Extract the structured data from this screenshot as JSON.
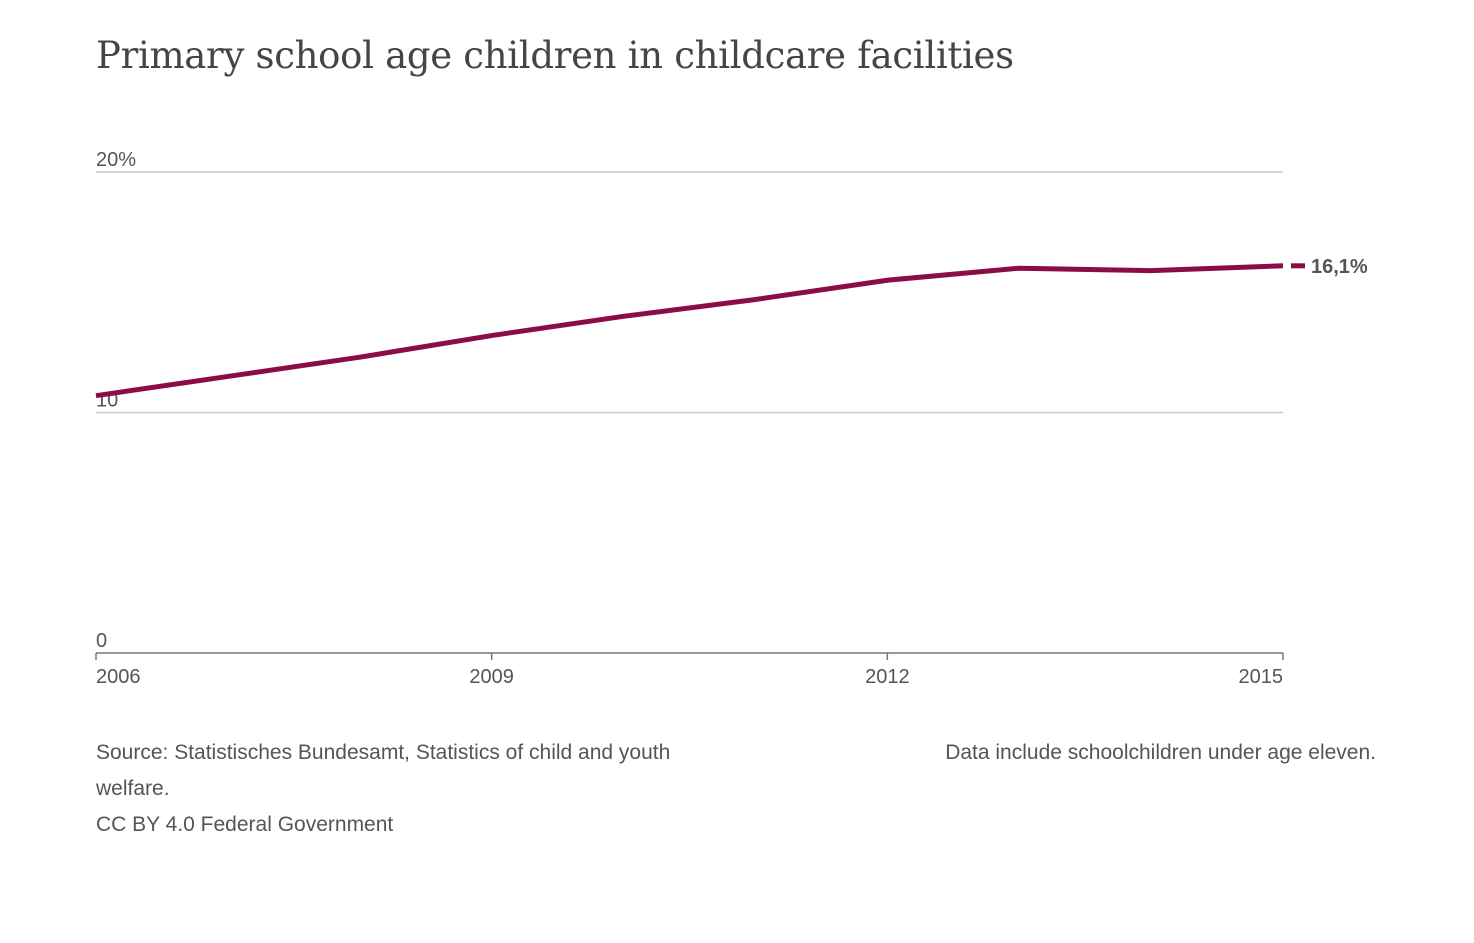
{
  "chart_data": {
    "type": "line",
    "title": "Primary school age children in childcare facilities",
    "xlabel": "",
    "ylabel": "",
    "x": [
      2006,
      2007,
      2008,
      2009,
      2010,
      2011,
      2012,
      2013,
      2014,
      2015
    ],
    "series": [
      {
        "values": [
          10.7,
          11.5,
          12.3,
          13.2,
          14.0,
          14.7,
          15.5,
          16.0,
          15.9,
          16.1
        ]
      }
    ],
    "xlim": [
      2006,
      2015
    ],
    "ylim": [
      0,
      20
    ],
    "x_ticks": [
      {
        "value": 2006,
        "label": "2006"
      },
      {
        "value": 2009,
        "label": "2009"
      },
      {
        "value": 2012,
        "label": "2012"
      },
      {
        "value": 2015,
        "label": "2015"
      }
    ],
    "y_ticks": [
      {
        "value": 0,
        "label": "0"
      },
      {
        "value": 10,
        "label": "10"
      },
      {
        "value": 20,
        "label": "20%"
      }
    ],
    "end_label": "16,1%",
    "grid": true,
    "legend": "none",
    "colors": {
      "line": "#8a0d48",
      "grid": "#c8c8c8",
      "axis": "#777777",
      "text": "#555555"
    }
  },
  "footer": {
    "source_line1": "Source: Statistisches Bundesamt, Statistics of child and youth",
    "source_line2": "welfare.",
    "license": "CC BY 4.0 Federal Government",
    "note": "Data include schoolchildren under age eleven."
  }
}
